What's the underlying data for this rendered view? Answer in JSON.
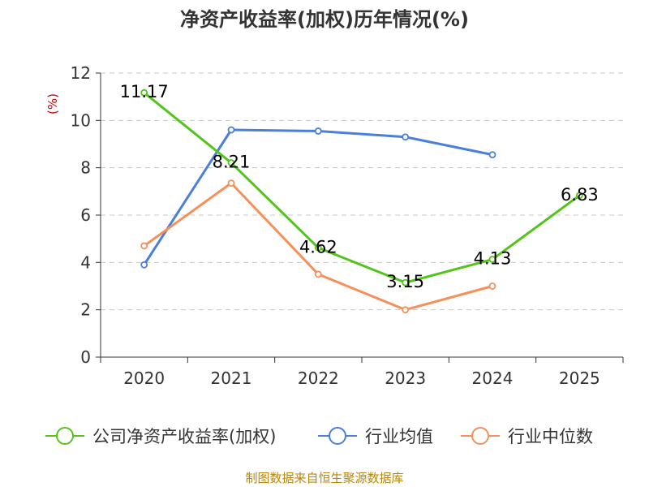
{
  "chart_data": {
    "type": "line",
    "title": "净资产收益率(加权)历年情况(%)",
    "ylabel": "(%)",
    "xlabel": "",
    "categories": [
      "2020",
      "2021",
      "2022",
      "2023",
      "2024",
      "2025"
    ],
    "ylim": [
      0,
      12
    ],
    "yticks": [
      0,
      2,
      4,
      6,
      8,
      10,
      12
    ],
    "grid": true,
    "legend_position": "bottom",
    "series": [
      {
        "name": "公司净资产收益率(加权)",
        "color": "#52c41a",
        "values": [
          11.17,
          8.21,
          4.62,
          3.15,
          4.13,
          6.83
        ],
        "labels": [
          "11.17",
          "8.21",
          "4.62",
          "3.15",
          "4.13",
          "6.83"
        ]
      },
      {
        "name": "行业均值",
        "color": "#4a7fdb",
        "values": [
          3.9,
          9.6,
          9.55,
          9.3,
          8.55,
          null
        ]
      },
      {
        "name": "行业中位数",
        "color": "#f5905a",
        "values": [
          4.7,
          7.35,
          3.5,
          2.0,
          3.0,
          null
        ]
      }
    ]
  },
  "source": "制图数据来自恒生聚源数据库"
}
